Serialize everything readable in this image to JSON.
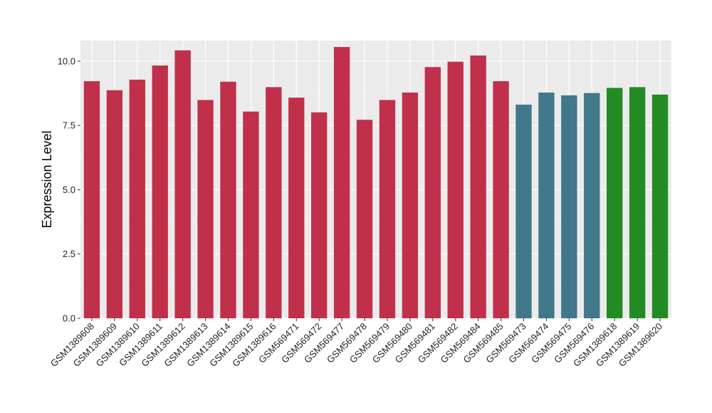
{
  "chart_data": {
    "type": "bar",
    "title": "",
    "xlabel": "",
    "ylabel": "Expression Level",
    "ylim": [
      0,
      10.8
    ],
    "yticks": [
      0.0,
      2.5,
      5.0,
      7.5,
      10.0
    ],
    "ytick_labels": [
      "0.0",
      "2.5",
      "5.0",
      "7.5",
      "10.0"
    ],
    "grid": true,
    "legend": "none",
    "background": "#ebebeb",
    "categories": [
      "GSM1389608",
      "GSM1389609",
      "GSM1389610",
      "GSM1389611",
      "GSM1389612",
      "GSM1389613",
      "GSM1389614",
      "GSM1389615",
      "GSM1389616",
      "GSM569471",
      "GSM569472",
      "GSM569477",
      "GSM569478",
      "GSM569479",
      "GSM569480",
      "GSM569481",
      "GSM569482",
      "GSM569484",
      "GSM569485",
      "GSM569473",
      "GSM569474",
      "GSM569475",
      "GSM569476",
      "GSM1389618",
      "GSM1389619",
      "GSM1389620"
    ],
    "values": [
      9.22,
      8.87,
      9.28,
      9.83,
      10.42,
      8.49,
      9.2,
      8.04,
      8.99,
      8.58,
      8.01,
      10.55,
      7.72,
      8.49,
      8.78,
      9.77,
      9.98,
      10.22,
      9.22,
      8.31,
      8.78,
      8.67,
      8.76,
      8.96,
      8.99,
      8.7
    ],
    "bar_colors": [
      "#c0304a",
      "#c0304a",
      "#c0304a",
      "#c0304a",
      "#c0304a",
      "#c0304a",
      "#c0304a",
      "#c0304a",
      "#c0304a",
      "#c0304a",
      "#c0304a",
      "#c0304a",
      "#c0304a",
      "#c0304a",
      "#c0304a",
      "#c0304a",
      "#c0304a",
      "#c0304a",
      "#c0304a",
      "#41788a",
      "#41788a",
      "#41788a",
      "#41788a",
      "#238b23",
      "#238b23",
      "#238b23"
    ]
  }
}
